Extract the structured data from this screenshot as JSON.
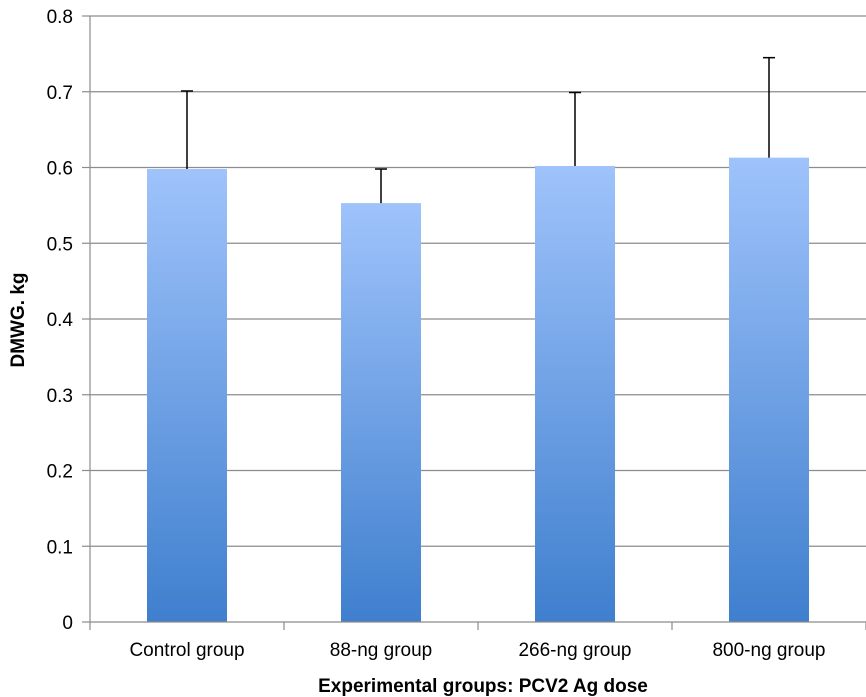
{
  "chart_data": {
    "type": "bar",
    "title": "",
    "xlabel": "Experimental groups: PCV2 Ag dose",
    "ylabel": "DMWG. kg",
    "categories": [
      "Control group",
      "88-ng group",
      "266-ng group",
      "800-ng group"
    ],
    "values": [
      0.598,
      0.553,
      0.602,
      0.613
    ],
    "error_upper": [
      0.701,
      0.598,
      0.699,
      0.745
    ],
    "ylim": [
      0,
      0.8
    ],
    "yticks": [
      0,
      0.1,
      0.2,
      0.3,
      0.4,
      0.5,
      0.6,
      0.7,
      0.8
    ],
    "ytick_labels": [
      "0",
      "0.1",
      "0.2",
      "0.3",
      "0.4",
      "0.5",
      "0.6",
      "0.7",
      "0.8"
    ],
    "grid": true,
    "colors": {
      "bar_top": "#9fc3fb",
      "bar_bottom": "#3f7fce",
      "grid": "#8c8c8c",
      "axis": "#8c8c8c",
      "error_bar": "#000000"
    }
  }
}
